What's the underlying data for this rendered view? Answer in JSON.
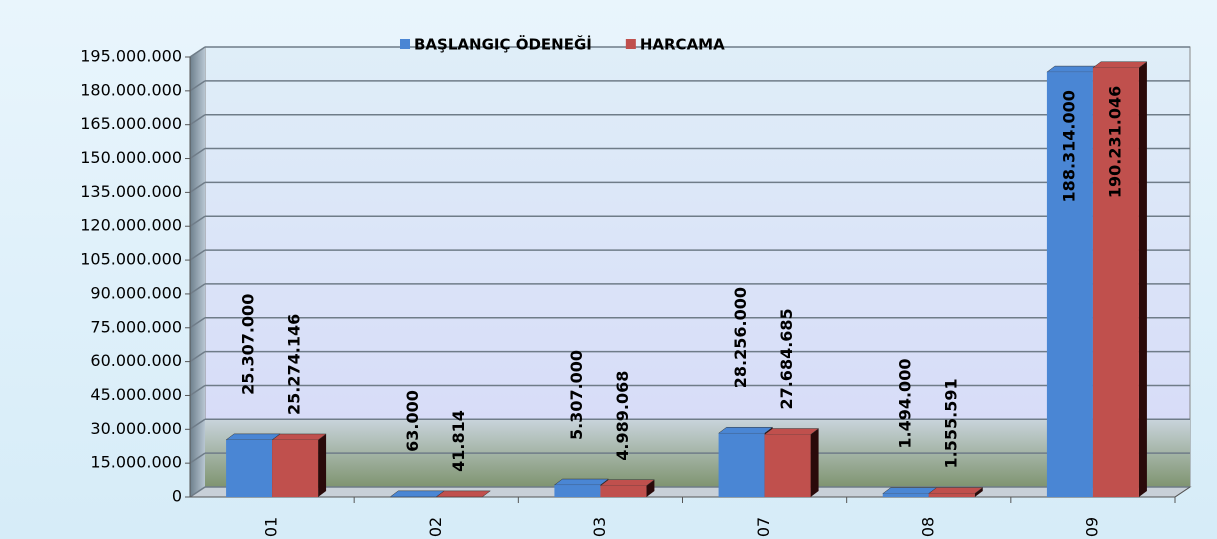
{
  "chart_data": {
    "type": "bar",
    "categories": [
      "01",
      "02",
      "03",
      "07",
      "08",
      "09"
    ],
    "series": [
      {
        "name": "BAŞLANGIÇ ÖDENEĞİ",
        "color": "#4a86d4",
        "values": [
          25307000,
          63000,
          5307000,
          28256000,
          1494000,
          188314000
        ],
        "value_labels": [
          "25.307.000",
          "63.000",
          "5.307.000",
          "28.256.000",
          "1.494.000",
          "188.314.000"
        ]
      },
      {
        "name": "HARCAMA",
        "color": "#c0504d",
        "values": [
          25274146,
          41814,
          4989068,
          27684685,
          1555591,
          190231046
        ],
        "value_labels": [
          "25.274.146",
          "41.814",
          "4.989.068",
          "27.684.685",
          "1.555.591",
          "190.231.046"
        ]
      }
    ],
    "ylim": [
      0,
      195000000
    ],
    "yticks": [
      0,
      {
        "value": 15000000,
        "label": "15.000.000"
      },
      {
        "value": 30000000,
        "label": "30.000.000"
      },
      {
        "value": 45000000,
        "label": "45.000.000"
      },
      {
        "value": 60000000,
        "label": "60.000.000"
      },
      {
        "value": 75000000,
        "label": "75.000.000"
      },
      {
        "value": 90000000,
        "label": "90.000.000"
      },
      {
        "value": 105000000,
        "label": "105.000.000"
      },
      {
        "value": 120000000,
        "label": "120.000.000"
      },
      {
        "value": 135000000,
        "label": "135.000.000"
      },
      {
        "value": 150000000,
        "label": "150.000.000"
      },
      {
        "value": 165000000,
        "label": "165.000.000"
      },
      {
        "value": 180000000,
        "label": "180.000.000"
      },
      {
        "value": 195000000,
        "label": "195.000.000"
      }
    ],
    "grid": true,
    "legend": "top"
  }
}
